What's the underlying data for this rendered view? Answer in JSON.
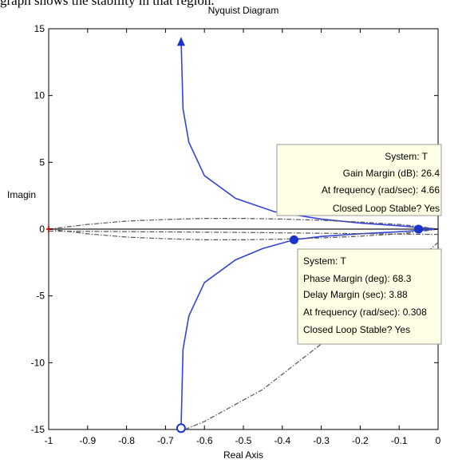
{
  "caption_fragment": "graph shows the stability in that region.",
  "chart_data": {
    "type": "line",
    "title": "Nyquist Diagram",
    "xlabel": "Real Axis",
    "ylabel": "Imagin",
    "xlim": [
      -1,
      0
    ],
    "ylim": [
      -15,
      15
    ],
    "xticks": [
      -1,
      -0.9,
      -0.8,
      -0.7,
      -0.6,
      -0.5,
      -0.4,
      -0.3,
      -0.2,
      -0.1,
      0
    ],
    "xtick_labels": [
      "-1",
      "-0.9",
      "-0.8",
      "-0.7",
      "-0.6",
      "-0.5",
      "-0.4",
      "-0.3",
      "-0.2",
      "-0.1",
      "0"
    ],
    "yticks": [
      -15,
      -10,
      -5,
      0,
      5,
      10,
      15
    ],
    "ytick_labels": [
      "-15",
      "-10",
      "-5",
      "0",
      "5",
      "10",
      "15"
    ],
    "grid": false,
    "series": [
      {
        "style": "solid",
        "color": "#3344dd",
        "points": [
          [
            -0.66,
            14.3
          ],
          [
            -0.655,
            9.0
          ],
          [
            -0.64,
            6.5
          ],
          [
            -0.6,
            4.0
          ],
          [
            -0.52,
            2.3
          ],
          [
            -0.42,
            1.3
          ],
          [
            -0.3,
            0.75
          ],
          [
            -0.2,
            0.45
          ],
          [
            -0.1,
            0.25
          ],
          [
            -0.05,
            0.12
          ],
          [
            0,
            0
          ]
        ]
      },
      {
        "style": "solid",
        "color": "#3344dd",
        "points": [
          [
            -0.66,
            -14.9
          ],
          [
            -0.655,
            -9.0
          ],
          [
            -0.64,
            -6.5
          ],
          [
            -0.6,
            -4.0
          ],
          [
            -0.52,
            -2.3
          ],
          [
            -0.45,
            -1.45
          ],
          [
            -0.37,
            -0.8
          ],
          [
            -0.3,
            -0.55
          ],
          [
            -0.2,
            -0.35
          ],
          [
            -0.1,
            -0.2
          ],
          [
            -0.05,
            -0.1
          ],
          [
            0,
            0
          ]
        ]
      },
      {
        "style": "dashdot",
        "color": "#555555",
        "points": [
          [
            -1,
            0
          ],
          [
            -0.9,
            0.35
          ],
          [
            -0.8,
            0.6
          ],
          [
            -0.7,
            0.72
          ],
          [
            -0.6,
            0.8
          ],
          [
            -0.5,
            0.8
          ],
          [
            -0.4,
            0.75
          ],
          [
            -0.3,
            0.66
          ],
          [
            -0.2,
            0.53
          ],
          [
            -0.1,
            0.35
          ],
          [
            -0.05,
            0.2
          ],
          [
            0,
            0
          ]
        ]
      },
      {
        "style": "dashdot",
        "color": "#555555",
        "points": [
          [
            -1,
            0
          ],
          [
            -0.9,
            -0.35
          ],
          [
            -0.8,
            -0.6
          ],
          [
            -0.7,
            -0.72
          ],
          [
            -0.6,
            -0.8
          ],
          [
            -0.5,
            -0.8
          ],
          [
            -0.4,
            -0.75
          ],
          [
            -0.3,
            -0.66
          ],
          [
            -0.2,
            -0.53
          ],
          [
            -0.1,
            -0.35
          ],
          [
            -0.05,
            -0.2
          ],
          [
            0,
            0
          ]
        ]
      },
      {
        "style": "dashdot",
        "color": "#555555",
        "points": [
          [
            -0.65,
            -15
          ],
          [
            -0.6,
            -14.4
          ],
          [
            -0.45,
            -12.0
          ],
          [
            -0.3,
            -8.6
          ],
          [
            -0.15,
            -4.8
          ],
          [
            0,
            -1.0
          ]
        ]
      },
      {
        "style": "dashdot",
        "color": "#555555",
        "points": [
          [
            -1,
            -0.15
          ],
          [
            -0.5,
            -0.25
          ],
          [
            0,
            -0.4
          ]
        ]
      }
    ],
    "axis_line_y0": {
      "color": "#444444"
    },
    "markers": [
      {
        "kind": "arrow-up",
        "x": -0.66,
        "y": 13.9,
        "color": "#1a33cc"
      },
      {
        "kind": "hollow-circle",
        "x": -0.66,
        "y": -14.9,
        "color": "#1a33cc"
      },
      {
        "kind": "filled-circle",
        "x": -0.37,
        "y": -0.8,
        "color": "#1a33cc"
      },
      {
        "kind": "filled-circle",
        "x": -0.05,
        "y": 0.0,
        "color": "#1a33cc"
      },
      {
        "kind": "plus",
        "x": -1,
        "y": 0,
        "color": "#dd2222"
      }
    ],
    "annotations": [
      {
        "name": "gain-margin-datatip",
        "lines": [
          "System: T",
          "Gain Margin (dB): 26.4",
          "At frequency (rad/sec): 4.66",
          "Closed Loop Stable? Yes"
        ]
      },
      {
        "name": "phase-margin-datatip",
        "lines": [
          "System: T",
          "Phase Margin (deg): 68.3",
          "Delay Margin (sec): 3.88",
          "At frequency (rad/sec): 0.308",
          "Closed Loop Stable? Yes"
        ]
      }
    ]
  }
}
